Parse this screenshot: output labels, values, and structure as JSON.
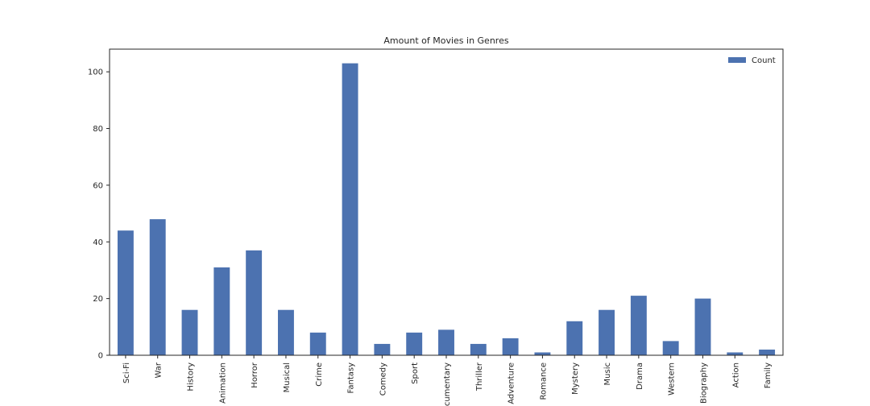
{
  "chart_data": {
    "type": "bar",
    "title": "Amount of Movies in Genres",
    "xlabel": "",
    "ylabel": "",
    "categories": [
      "Sci-Fi",
      "War",
      "History",
      "Animation",
      "Horror",
      "Musical",
      "Crime",
      "Fantasy",
      "Comedy",
      "Sport",
      "Documentary",
      "Thriller",
      "Adventure",
      "Romance",
      "Mystery",
      "Music",
      "Drama",
      "Western",
      "Biography",
      "Action",
      "Family"
    ],
    "series": [
      {
        "name": "Count",
        "values": [
          44,
          48,
          16,
          31,
          37,
          16,
          8,
          103,
          4,
          8,
          9,
          4,
          6,
          1,
          12,
          16,
          21,
          5,
          20,
          1,
          2
        ],
        "color": "#4c72b0"
      }
    ],
    "ylim": [
      0,
      108
    ],
    "yticks": [
      0,
      20,
      40,
      60,
      80,
      100
    ],
    "legend_position": "top-right",
    "grid": false
  }
}
